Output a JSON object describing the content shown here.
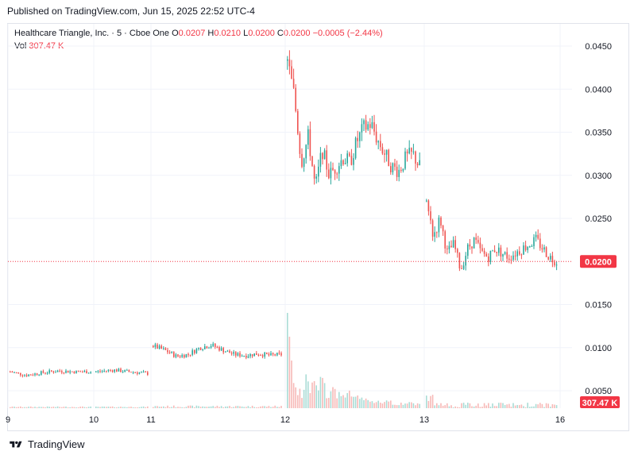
{
  "header": {
    "published": "Published on TradingView.com, Jun 15, 2025 22:52 UTC-4"
  },
  "legend": {
    "symbol": "Healthcare Triangle, Inc. · 5 · Cboe One",
    "o_label": "O",
    "o_value": "0.0207",
    "h_label": "H",
    "h_value": "0.0210",
    "l_label": "L",
    "l_value": "0.0200",
    "c_label": "C",
    "c_value": "0.0200",
    "change": "−0.0005 (−2.44%)",
    "vol_label": "Vol",
    "vol_value": "307.47 K"
  },
  "footer": {
    "brand": "TradingView"
  },
  "colors": {
    "up": "#26a69a",
    "down": "#ef5350",
    "vol_up": "#a9dcd6",
    "vol_down": "#f7b9b7",
    "price_line": "#f23645",
    "grid": "#f0f3fa"
  },
  "chart_data": {
    "type": "candlestick",
    "price_axis": {
      "ticks": [
        "0.0450",
        "0.0400",
        "0.0350",
        "0.0300",
        "0.0250",
        "0.0150",
        "0.0100",
        "0.0050"
      ],
      "ylim": [
        0.002,
        0.047
      ]
    },
    "time_axis": {
      "ticks": [
        "9",
        "10",
        "11",
        "12",
        "13",
        "16"
      ]
    },
    "last_price": {
      "label": "0.0200",
      "value": 0.02
    },
    "last_volume": {
      "label": "307.47 K"
    },
    "sessions": [
      {
        "day": "9",
        "ohlc_path": [
          0.0072,
          0.0068,
          0.0071,
          0.0073,
          0.0072,
          0.0072
        ],
        "volume_level": 0.05
      },
      {
        "day": "10",
        "ohlc_path": [
          0.0072,
          0.0073,
          0.0074,
          0.0073,
          0.0072,
          0.0071,
          0.007
        ],
        "volume_level": 0.05
      },
      {
        "day": "11",
        "ohlc_path": [
          0.0102,
          0.0097,
          0.009,
          0.0092,
          0.01,
          0.0103,
          0.0097,
          0.0092,
          0.0091,
          0.0093,
          0.0091,
          0.0092
        ],
        "volume_level": 0.1
      },
      {
        "day": "12",
        "ohlc_path": [
          0.0433,
          0.039,
          0.0315,
          0.0345,
          0.0285,
          0.033,
          0.03,
          0.031,
          0.032,
          0.0315,
          0.034,
          0.0355,
          0.036,
          0.034,
          0.0325,
          0.031,
          0.0305,
          0.032,
          0.0325,
          0.031
        ],
        "volume_level": 1.0
      },
      {
        "day": "13",
        "ohlc_path": [
          0.027,
          0.023,
          0.025,
          0.021,
          0.022,
          0.019,
          0.0215,
          0.0225,
          0.021,
          0.0205,
          0.0215,
          0.021,
          0.0205,
          0.021,
          0.0215,
          0.022,
          0.0225,
          0.0215,
          0.0205,
          0.02
        ],
        "volume_level": 0.25
      }
    ]
  }
}
